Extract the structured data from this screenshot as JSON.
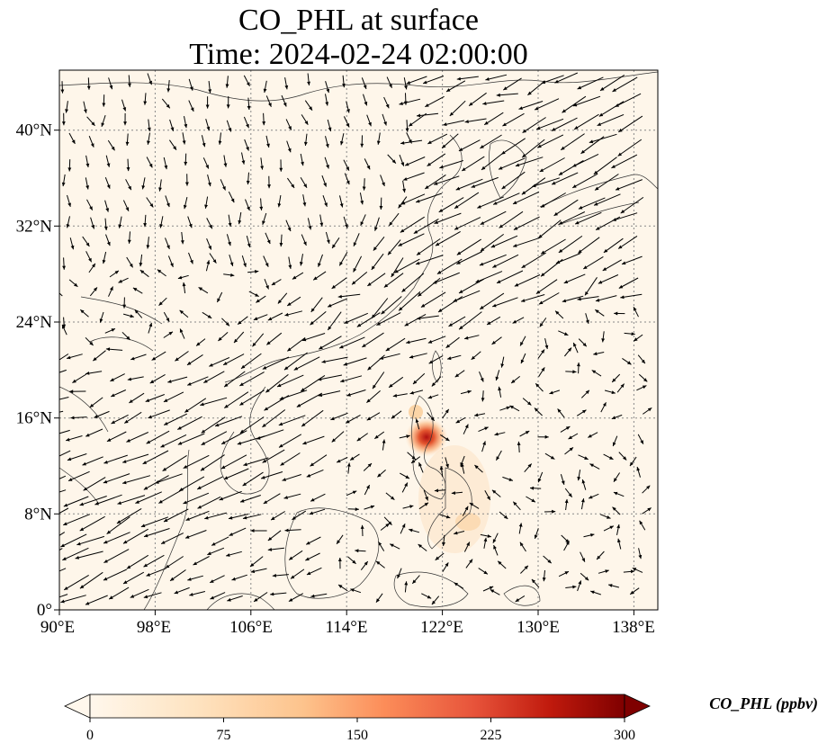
{
  "title": {
    "line1": "CO_PHL at surface",
    "line2": "Time: 2024-02-24 02:00:00"
  },
  "map": {
    "extent": {
      "lon_min": 90,
      "lon_max": 140,
      "lat_min": 0,
      "lat_max": 45
    },
    "background_color": "#fef6ea",
    "latitude_ticks": [
      {
        "value": 0,
        "label": "0°"
      },
      {
        "value": 8,
        "label": "8°N"
      },
      {
        "value": 16,
        "label": "16°N"
      },
      {
        "value": 24,
        "label": "24°N"
      },
      {
        "value": 32,
        "label": "32°N"
      },
      {
        "value": 40,
        "label": "40°N"
      }
    ],
    "longitude_ticks": [
      {
        "value": 90,
        "label": "90°E"
      },
      {
        "value": 98,
        "label": "98°E"
      },
      {
        "value": 106,
        "label": "106°E"
      },
      {
        "value": 114,
        "label": "114°E"
      },
      {
        "value": 122,
        "label": "122°E"
      },
      {
        "value": 130,
        "label": "130°E"
      },
      {
        "value": 138,
        "label": "138°E"
      }
    ],
    "gridlines": "dotted",
    "wind_vectors": "shown",
    "hotspot": {
      "lon": 120.8,
      "lat": 14.6,
      "description_color": "#b22222"
    }
  },
  "colorbar": {
    "title": "CO_PHL (ppbv)",
    "min": 0,
    "max": 300,
    "ticks": [
      "0",
      "75",
      "150",
      "225",
      "300"
    ],
    "colormap": "OrRd",
    "extend": "both"
  }
}
